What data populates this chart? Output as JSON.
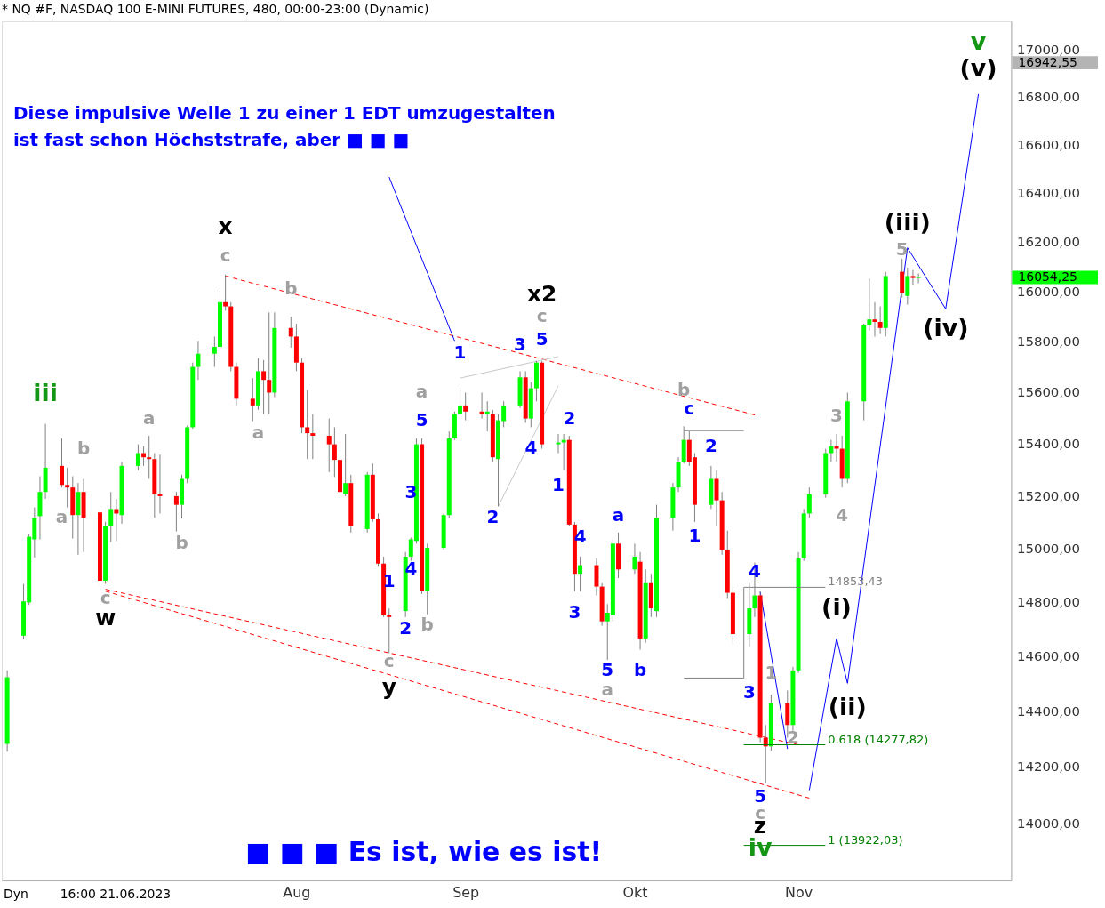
{
  "chart_data": {
    "type": "candlestick",
    "title": "* NQ #F, NASDAQ 100 E-MINI FUTURES, 480, 00:00-23:00 (Dynamic)",
    "x": [
      "2023-06-09",
      "2023-06-12",
      "2023-06-13",
      "2023-06-14",
      "2023-06-15",
      "2023-06-16",
      "2023-06-19",
      "2023-06-20",
      "2023-06-21",
      "2023-06-22",
      "2023-06-23",
      "2023-06-26",
      "2023-06-27",
      "2023-06-28",
      "2023-06-29",
      "2023-06-30",
      "2023-07-03",
      "2023-07-04",
      "2023-07-05",
      "2023-07-06",
      "2023-07-07",
      "2023-07-10",
      "2023-07-11",
      "2023-07-12",
      "2023-07-13",
      "2023-07-14",
      "2023-07-17",
      "2023-07-18",
      "2023-07-19",
      "2023-07-20",
      "2023-07-21",
      "2023-07-24",
      "2023-07-25",
      "2023-07-26",
      "2023-07-27",
      "2023-07-28",
      "2023-07-31",
      "2023-08-01",
      "2023-08-02",
      "2023-08-03",
      "2023-08-04",
      "2023-08-07",
      "2023-08-08",
      "2023-08-09",
      "2023-08-10",
      "2023-08-11",
      "2023-08-14",
      "2023-08-15",
      "2023-08-16",
      "2023-08-17",
      "2023-08-18",
      "2023-08-21",
      "2023-08-22",
      "2023-08-23",
      "2023-08-24",
      "2023-08-25",
      "2023-08-28",
      "2023-08-29",
      "2023-08-30",
      "2023-08-31",
      "2023-09-01",
      "2023-09-04",
      "2023-09-05",
      "2023-09-06",
      "2023-09-07",
      "2023-09-08",
      "2023-09-11",
      "2023-09-12",
      "2023-09-13",
      "2023-09-14",
      "2023-09-15",
      "2023-09-18",
      "2023-09-19",
      "2023-09-20",
      "2023-09-21",
      "2023-09-22",
      "2023-09-25",
      "2023-09-26",
      "2023-09-27",
      "2023-09-28",
      "2023-09-29",
      "2023-10-02",
      "2023-10-03",
      "2023-10-04",
      "2023-10-05",
      "2023-10-06",
      "2023-10-09",
      "2023-10-10",
      "2023-10-11",
      "2023-10-12",
      "2023-10-13",
      "2023-10-16",
      "2023-10-17",
      "2023-10-18",
      "2023-10-19",
      "2023-10-20",
      "2023-10-23",
      "2023-10-24",
      "2023-10-25",
      "2023-10-26",
      "2023-10-27",
      "2023-10-30",
      "2023-10-31",
      "2023-11-01",
      "2023-11-02",
      "2023-11-03",
      "2023-11-06",
      "2023-11-07",
      "2023-11-08",
      "2023-11-09",
      "2023-11-10",
      "2023-11-13",
      "2023-11-14",
      "2023-11-15",
      "2023-11-16",
      "2023-11-17",
      "2023-11-20",
      "2023-11-21",
      "2023-11-22",
      "2023-11-23"
    ],
    "ohlc": [
      [
        14281,
        14547,
        14253,
        14522
      ],
      [
        14674,
        14866,
        14661,
        14801
      ],
      [
        14797,
        15053,
        14788,
        15043
      ],
      [
        15033,
        15154,
        14965,
        15115
      ],
      [
        15121,
        15273,
        15033,
        15213
      ],
      [
        15213,
        15475,
        15187,
        15306
      ],
      [
        15313,
        15419,
        15230,
        15240
      ],
      [
        15240,
        15306,
        15154,
        15230
      ],
      [
        15230,
        15273,
        15036,
        15125
      ],
      [
        15125,
        15247,
        14975,
        15213
      ],
      [
        15213,
        15263,
        14985,
        15115
      ],
      [
        15135,
        15148,
        14856,
        14878
      ],
      [
        14878,
        15099,
        14866,
        15082
      ],
      [
        15082,
        15213,
        15023,
        15148
      ],
      [
        15148,
        15187,
        15027,
        15131
      ],
      [
        15125,
        15329,
        15092,
        15313
      ],
      [
        15313,
        15396,
        15296,
        15362
      ],
      [
        15362,
        15389,
        15313,
        15346
      ],
      [
        15346,
        15429,
        15263,
        15339
      ],
      [
        15339,
        15362,
        15115,
        15204
      ],
      [
        15204,
        15356,
        15131,
        15197
      ],
      [
        15197,
        15213,
        15063,
        15164
      ],
      [
        15164,
        15279,
        15112,
        15263
      ],
      [
        15263,
        15469,
        15247,
        15462
      ],
      [
        15462,
        15715,
        15456,
        15698
      ],
      [
        15698,
        15801,
        15647,
        15750
      ],
      [
        15750,
        15818,
        15698,
        15777
      ],
      [
        15777,
        16000,
        15739,
        15955
      ],
      [
        15955,
        16066,
        15921,
        15938
      ],
      [
        15938,
        15955,
        15681,
        15698
      ],
      [
        15698,
        15715,
        15547,
        15573
      ],
      [
        15573,
        15654,
        15486,
        15547
      ],
      [
        15547,
        15732,
        15530,
        15681
      ],
      [
        15681,
        15725,
        15513,
        15647
      ],
      [
        15647,
        15914,
        15513,
        15597
      ],
      [
        15597,
        15914,
        15580,
        15852
      ],
      [
        15852,
        15897,
        15774,
        15818
      ],
      [
        15818,
        15869,
        15681,
        15715
      ],
      [
        15715,
        15732,
        15439,
        15462
      ],
      [
        15462,
        15607,
        15339,
        15439
      ],
      [
        15439,
        15513,
        15339,
        15429
      ],
      [
        15429,
        15496,
        15289,
        15396
      ],
      [
        15396,
        15462,
        15270,
        15336
      ],
      [
        15336,
        15362,
        15197,
        15213
      ],
      [
        15204,
        15436,
        15197,
        15247
      ],
      [
        15247,
        15279,
        15059,
        15082
      ],
      [
        15072,
        15289,
        15059,
        15279
      ],
      [
        15279,
        15322,
        15099,
        15109
      ],
      [
        15109,
        15131,
        14930,
        14942
      ],
      [
        14942,
        14968,
        14743,
        14749
      ],
      [
        14749,
        14775,
        14610,
        14743
      ],
      [
        14765,
        14985,
        14743,
        14968
      ],
      [
        14968,
        15040,
        14952,
        15033
      ],
      [
        15027,
        15419,
        15017,
        15396
      ],
      [
        15396,
        15419,
        14829,
        14839
      ],
      [
        14839,
        15017,
        14753,
        15001
      ],
      [
        15001,
        15131,
        14994,
        15125
      ],
      [
        15125,
        15446,
        15115,
        15419
      ],
      [
        15419,
        15523,
        15413,
        15513
      ],
      [
        15513,
        15607,
        15503,
        15547
      ],
      [
        15547,
        15597,
        15489,
        15523
      ],
      [
        15523,
        15597,
        15496,
        15513
      ],
      [
        15513,
        15563,
        15446,
        15523
      ],
      [
        15513,
        15530,
        15329,
        15346
      ],
      [
        15339,
        15513,
        15158,
        15489
      ],
      [
        15486,
        15563,
        15462,
        15547
      ],
      [
        15547,
        15681,
        15537,
        15657
      ],
      [
        15657,
        15681,
        15479,
        15496
      ],
      [
        15496,
        15637,
        15462,
        15614
      ],
      [
        15614,
        15722,
        15563,
        15715
      ],
      [
        15715,
        15722,
        15379,
        15396
      ],
      [
        15396,
        15436,
        15362,
        15403
      ],
      [
        15403,
        15436,
        15296,
        15413
      ],
      [
        15413,
        15429,
        15082,
        15089
      ],
      [
        15089,
        15099,
        14839,
        14904
      ],
      [
        14904,
        14968,
        14839,
        14936
      ],
      [
        14936,
        14962,
        14823,
        14856
      ],
      [
        14856,
        14872,
        14711,
        14727
      ],
      [
        14727,
        14791,
        14585,
        14759
      ],
      [
        14749,
        15033,
        14727,
        15017
      ],
      [
        15017,
        15059,
        14888,
        14920
      ],
      [
        14920,
        15017,
        14904,
        14968
      ],
      [
        14949,
        14985,
        14623,
        14664
      ],
      [
        14664,
        14920,
        14648,
        14872
      ],
      [
        14872,
        14904,
        14743,
        14775
      ],
      [
        14765,
        15164,
        14743,
        15115
      ],
      [
        15115,
        15247,
        15066,
        15230
      ],
      [
        15230,
        15346,
        15213,
        15329
      ],
      [
        15329,
        15466,
        15322,
        15413
      ],
      [
        15413,
        15446,
        15313,
        15329
      ],
      [
        15346,
        15362,
        15099,
        15164
      ],
      [
        15164,
        15313,
        15148,
        15263
      ],
      [
        15263,
        15296,
        15082,
        15181
      ],
      [
        15181,
        15213,
        14975,
        14994
      ],
      [
        14994,
        15066,
        14813,
        14833
      ],
      [
        14833,
        14856,
        14642,
        14680
      ],
      [
        14680,
        14872,
        14632,
        14775
      ],
      [
        14775,
        14946,
        14743,
        14823
      ],
      [
        14823,
        14839,
        14287,
        14303
      ],
      [
        14303,
        14349,
        14140,
        14272
      ],
      [
        14272,
        14459,
        14256,
        14428
      ],
      [
        14428,
        14474,
        14303,
        14349
      ],
      [
        14349,
        14560,
        14328,
        14547
      ],
      [
        14547,
        14985,
        14538,
        14962
      ],
      [
        14962,
        15148,
        14952,
        15131
      ],
      [
        15131,
        15230,
        15115,
        15204
      ],
      [
        15204,
        15379,
        15191,
        15362
      ],
      [
        15362,
        15413,
        15329,
        15389
      ],
      [
        15389,
        15436,
        15329,
        15379
      ],
      [
        15379,
        15429,
        15230,
        15263
      ],
      [
        15263,
        15597,
        15247,
        15563
      ],
      [
        15563,
        15869,
        15489,
        15862
      ],
      [
        15862,
        16049,
        15842,
        15886
      ],
      [
        15886,
        15955,
        15818,
        15876
      ],
      [
        15876,
        15938,
        15828,
        15852
      ],
      [
        15852,
        16077,
        15818,
        16060
      ],
      [
        16077,
        16129,
        15973,
        15990
      ],
      [
        15980,
        16094,
        15945,
        16060
      ],
      [
        16060,
        16084,
        16025,
        16052
      ],
      [
        16052,
        16070,
        16031,
        16054.25
      ]
    ],
    "colors": [
      "#00ff00",
      "#00ff00",
      "#00ff00",
      "#00ff00",
      "#00ff00",
      "#00ff00",
      "#ff0000",
      "#ff0000",
      "#ff0000",
      "#00ff00",
      "#ff0000",
      "#ff0000",
      "#00ff00",
      "#00ff00",
      "#ff0000",
      "#00ff00",
      "#00ff00",
      "#ff0000",
      "#ff0000",
      "#ff0000",
      "#ff0000",
      "#ff0000",
      "#00ff00",
      "#00ff00",
      "#00ff00",
      "#00ff00",
      "#00ff00",
      "#00ff00",
      "#ff0000",
      "#ff0000",
      "#ff0000",
      "#ff0000",
      "#00ff00",
      "#ff0000",
      "#ff0000",
      "#00ff00",
      "#ff0000",
      "#ff0000",
      "#ff0000",
      "#ff0000",
      "#ff0000",
      "#ff0000",
      "#ff0000",
      "#ff0000",
      "#00ff00",
      "#ff0000",
      "#00ff00",
      "#ff0000",
      "#ff0000",
      "#ff0000",
      "#ff0000",
      "#00ff00",
      "#00ff00",
      "#00ff00",
      "#ff0000",
      "#00ff00",
      "#00ff00",
      "#00ff00",
      "#00ff00",
      "#00ff00",
      "#ff0000",
      "#ff0000",
      "#00ff00",
      "#ff0000",
      "#00ff00",
      "#00ff00",
      "#00ff00",
      "#ff0000",
      "#00ff00",
      "#00ff00",
      "#ff0000",
      "#00ff00",
      "#00ff00",
      "#ff0000",
      "#ff0000",
      "#00ff00",
      "#ff0000",
      "#ff0000",
      "#00ff00",
      "#00ff00",
      "#ff0000",
      "#00ff00",
      "#ff0000",
      "#00ff00",
      "#ff0000",
      "#00ff00",
      "#00ff00",
      "#00ff00",
      "#00ff00",
      "#ff0000",
      "#ff0000",
      "#00ff00",
      "#ff0000",
      "#ff0000",
      "#ff0000",
      "#ff0000",
      "#00ff00",
      "#00ff00",
      "#ff0000",
      "#ff0000",
      "#00ff00",
      "#ff0000",
      "#00ff00",
      "#00ff00",
      "#00ff00",
      "#00ff00",
      "#00ff00",
      "#00ff00",
      "#ff0000",
      "#ff0000",
      "#00ff00",
      "#00ff00",
      "#00ff00",
      "#ff0000",
      "#ff0000",
      "#00ff00",
      "#ff0000",
      "#00ff00",
      "#ff0000",
      "#00ff00"
    ],
    "xlim": [
      "2023-06-08",
      "2023-12-10"
    ],
    "xticks": [
      {
        "value": "2023-08-01",
        "label": "Aug"
      },
      {
        "value": "2023-09-01",
        "label": "Sep"
      },
      {
        "value": "2023-10-02",
        "label": "Okt"
      },
      {
        "value": "2023-11-01",
        "label": "Nov"
      }
    ],
    "ylim": [
      13800,
      17120
    ],
    "yticks": [
      {
        "value": 14000,
        "label": "14000,00"
      },
      {
        "value": 14200,
        "label": "14200,00"
      },
      {
        "value": 14400,
        "label": "14400,00"
      },
      {
        "value": 14600,
        "label": "14600,00"
      },
      {
        "value": 14800,
        "label": "14800,00"
      },
      {
        "value": 15000,
        "label": "15000,00"
      },
      {
        "value": 15200,
        "label": "15200,00"
      },
      {
        "value": 15400,
        "label": "15400,00"
      },
      {
        "value": 15600,
        "label": "15600,00"
      },
      {
        "value": 15800,
        "label": "15800,00"
      },
      {
        "value": 16000,
        "label": "16000,00"
      },
      {
        "value": 16200,
        "label": "16200,00"
      },
      {
        "value": 16400,
        "label": "16400,00"
      },
      {
        "value": 16600,
        "label": "16600,00"
      },
      {
        "value": 16800,
        "label": "16800,00"
      },
      {
        "value": 17000,
        "label": "17000,00"
      }
    ],
    "log": "y",
    "series": [
      {
        "type": "line",
        "x": [
          "2023-07-19",
          "2023-10-24"
        ],
        "values": [
          16060,
          15510
        ],
        "color": "#ff0000",
        "line_style": "dashed"
      },
      {
        "type": "line",
        "x": [
          "2023-06-27",
          "2023-11-01"
        ],
        "values": [
          14846,
          14278
        ],
        "color": "#ff0000",
        "line_style": "dashed"
      },
      {
        "type": "line",
        "x": [
          "2023-06-27",
          "2023-11-03"
        ],
        "values": [
          14839,
          14088
        ],
        "color": "#ff0000",
        "line_style": "dashed"
      },
      {
        "type": "line",
        "x": [
          "2023-08-18",
          "2023-08-30"
        ],
        "values": [
          16464,
          15801
        ],
        "color": "#0000ff"
      },
      {
        "type": "line",
        "x": [
          "2023-10-25",
          "2023-10-30"
        ],
        "values": [
          14836,
          14263
        ],
        "color": "#0000ff"
      },
      {
        "type": "line",
        "x": [
          "2023-11-03",
          "2023-11-08",
          "2023-11-10",
          "2023-11-21",
          "2023-11-28",
          "2023-12-04"
        ],
        "values": [
          14116,
          14664,
          14500,
          16174,
          15928,
          16810
        ],
        "color": "#0000ff"
      },
      {
        "type": "line",
        "x": [
          "2023-08-31",
          "2023-09-18"
        ],
        "values": [
          15654,
          15739
        ],
        "color": "#c8c8c8"
      },
      {
        "type": "line",
        "x": [
          "2023-09-07",
          "2023-09-18"
        ],
        "values": [
          15158,
          15624
        ],
        "color": "#c8c8c8"
      },
      {
        "type": "line",
        "x": [
          "2023-10-11",
          "2023-10-22",
          "2023-10-22"
        ],
        "values": [
          14519,
          14519,
          14853.43
        ],
        "color": "#808080"
      },
      {
        "type": "line",
        "x": [
          "2023-10-11",
          "2023-10-22"
        ],
        "values": [
          15449,
          15449
        ],
        "color": "#808080"
      }
    ],
    "ref_lines": [
      {
        "axis": "y",
        "value": 14853.43,
        "label": "14853,43",
        "color": "#808080"
      },
      {
        "axis": "y",
        "value": 14277.82,
        "label": "0.618 (14277,82)",
        "color": "#008000"
      },
      {
        "axis": "y",
        "value": 13922.03,
        "label": "1 (13922,03)",
        "color": "#008000"
      },
      {
        "axis": "y",
        "value": 16942.55,
        "label": "16942,55",
        "color": "#b4b4b4"
      },
      {
        "axis": "y",
        "value": 16054.25,
        "label": "16054,25",
        "color": "#00ff00"
      }
    ],
    "annotations": [
      "iii",
      "c",
      "b",
      "a",
      "a",
      "b",
      "a",
      "b",
      "c",
      "a",
      "b",
      "c",
      "c",
      "a",
      "b",
      "1",
      "2",
      "c",
      "3",
      "4",
      "5",
      "x",
      "w",
      "y",
      "x2",
      "z",
      "(i)",
      "(ii)",
      "(iii)",
      "(iv)",
      "(v)",
      "iv",
      "v",
      "5",
      "3",
      "1",
      "4",
      "2",
      "1",
      "3",
      "5",
      "4",
      "2",
      "2",
      "1",
      "4",
      "3",
      "5",
      "a",
      "b",
      "c",
      "2",
      "1",
      "4",
      "3",
      "5",
      "Diese impulsive Welle 1 zu einer 1 EDT umzugestalten\nist fast schon Höchststrafe, aber ■ ■ ■",
      "■ ■ ■  Es ist, wie es ist!",
      "Dyn",
      "16:00 21.06.2023"
    ]
  }
}
